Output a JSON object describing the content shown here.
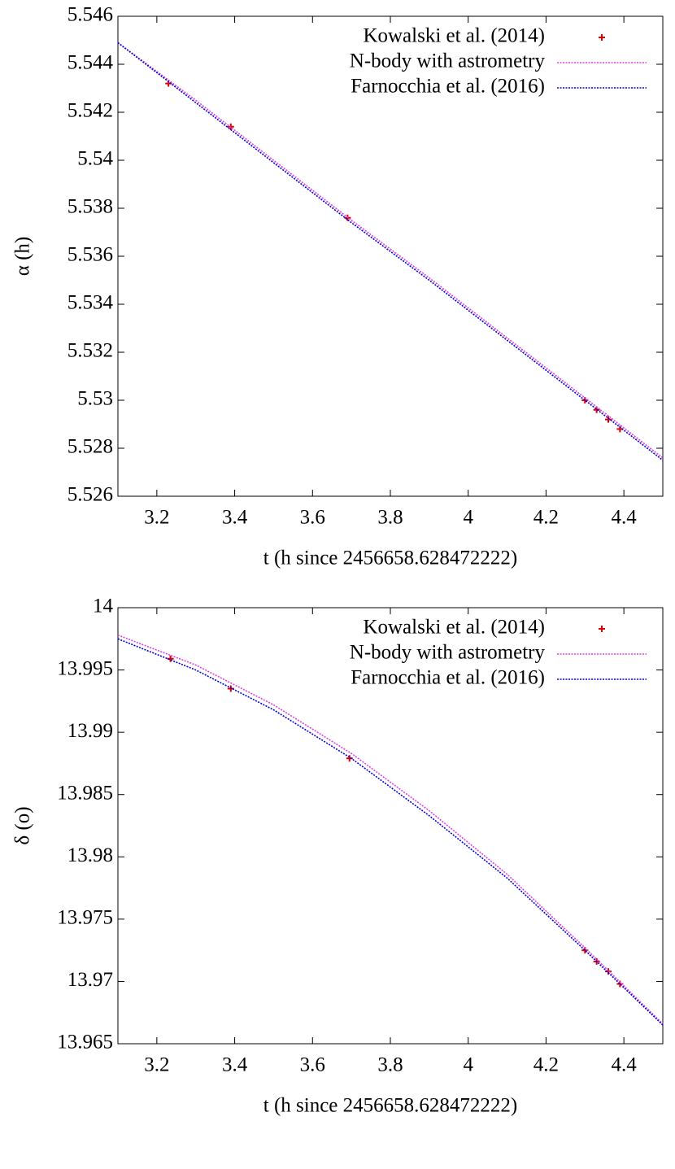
{
  "chart_data": [
    {
      "type": "line",
      "xlabel": "t (h since 2456658.628472222)",
      "ylabel": "α (h)",
      "xlim": [
        3.1,
        4.5
      ],
      "xticks": [
        3.2,
        3.4,
        3.6,
        3.8,
        4,
        4.2,
        4.4
      ],
      "ylim": [
        5.526,
        5.546
      ],
      "yticks": [
        5.526,
        5.528,
        5.53,
        5.532,
        5.534,
        5.536,
        5.538,
        5.54,
        5.542,
        5.544,
        5.546
      ],
      "legend": "upper right",
      "series": [
        {
          "name": "Kowalski et al. (2014)",
          "color": "#e00000",
          "style": "points",
          "x": [
            3.23,
            3.39,
            3.69,
            4.3,
            4.33,
            4.36,
            4.39
          ],
          "values": [
            5.5432,
            5.5414,
            5.5376,
            5.53,
            5.5296,
            5.5292,
            5.5288
          ]
        },
        {
          "name": "N-body with astrometry",
          "color": "#e040e0",
          "style": "dotted",
          "x": [
            3.1,
            3.3,
            3.5,
            3.7,
            3.9,
            4.1,
            4.3,
            4.5
          ],
          "values": [
            5.5449,
            5.5425,
            5.54,
            5.5375,
            5.5351,
            5.5326,
            5.5301,
            5.5276
          ]
        },
        {
          "name": "Farnocchia et al. (2016)",
          "color": "#0000e0",
          "style": "dotted",
          "x": [
            3.1,
            3.3,
            3.5,
            3.7,
            3.9,
            4.1,
            4.3,
            4.5
          ],
          "values": [
            5.5449,
            5.5424,
            5.5399,
            5.5374,
            5.535,
            5.5325,
            5.53,
            5.5275
          ]
        }
      ]
    },
    {
      "type": "line",
      "xlabel": "t (h since 2456658.628472222)",
      "ylabel": "δ (o)",
      "xlim": [
        3.1,
        4.5
      ],
      "xticks": [
        3.2,
        3.4,
        3.6,
        3.8,
        4,
        4.2,
        4.4
      ],
      "ylim": [
        13.965,
        14
      ],
      "yticks": [
        13.965,
        13.97,
        13.975,
        13.98,
        13.985,
        13.99,
        13.995,
        14
      ],
      "legend": "upper right",
      "series": [
        {
          "name": "Kowalski et al. (2014)",
          "color": "#e00000",
          "style": "points",
          "x": [
            3.235,
            3.39,
            3.695,
            4.3,
            4.33,
            4.36,
            4.39
          ],
          "values": [
            13.9959,
            13.9935,
            13.9879,
            13.9725,
            13.9716,
            13.9708,
            13.9698
          ]
        },
        {
          "name": "N-body with astrometry",
          "color": "#e040e0",
          "style": "dotted",
          "x": [
            3.1,
            3.3,
            3.5,
            3.7,
            3.9,
            4.1,
            4.3,
            4.5
          ],
          "values": [
            13.9978,
            13.9954,
            13.9922,
            13.9883,
            13.9837,
            13.9786,
            13.9727,
            13.9666
          ]
        },
        {
          "name": "Farnocchia et al. (2016)",
          "color": "#0000e0",
          "style": "dotted",
          "x": [
            3.1,
            3.3,
            3.5,
            3.7,
            3.9,
            4.1,
            4.3,
            4.5
          ],
          "values": [
            13.9975,
            13.995,
            13.9918,
            13.9879,
            13.9833,
            13.9783,
            13.9725,
            13.9665
          ]
        }
      ]
    }
  ]
}
